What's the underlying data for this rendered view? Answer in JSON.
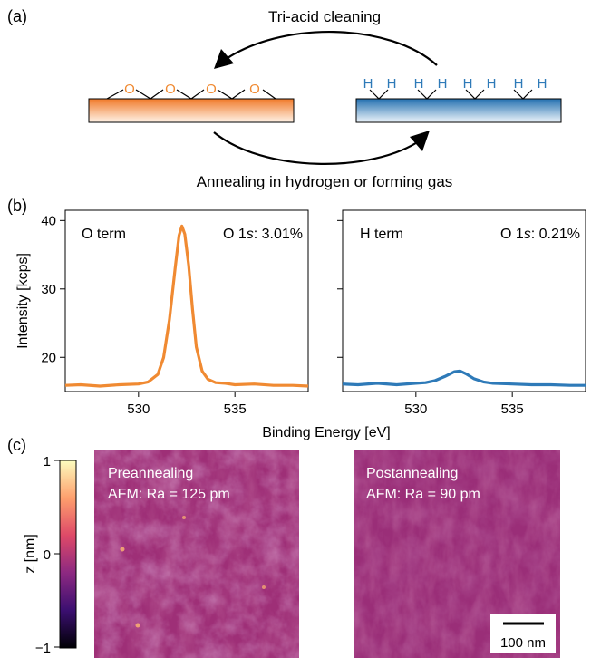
{
  "panel_a": {
    "label": "(a)",
    "top_arrow_label": "Tri-acid cleaning",
    "bottom_arrow_label": "Annealing in hydrogen or forming gas",
    "o_atoms": [
      "O",
      "O",
      "O",
      "O"
    ],
    "h_atoms": [
      "H",
      "H",
      "H",
      "H",
      "H",
      "H",
      "H",
      "H"
    ],
    "colors": {
      "oxygen": "#f08a32",
      "hydrogen": "#2e7ab8"
    }
  },
  "panel_b": {
    "label": "(b)"
  },
  "panel_c": {
    "label": "(c)",
    "colorbar_label": "z [nm]",
    "colorbar_ticks": [
      "1",
      "0",
      "−1"
    ],
    "left_title": "Preannealing",
    "left_subtitle": "AFM: Ra = 125 pm",
    "right_title": "Postannealing",
    "right_subtitle": "AFM: Ra = 90 pm",
    "scalebar_label": "100 nm"
  },
  "chart_data": [
    {
      "type": "line",
      "annotation_left": "O term",
      "annotation_right_prefix": "O 1",
      "annotation_right_italic": "s",
      "annotation_right_suffix": ": 3.01%",
      "xlabel": "Binding Energy [eV]",
      "ylabel": "Intensity [kcps]",
      "xlim": [
        526.2,
        538.8
      ],
      "ylim": [
        15,
        41.5
      ],
      "xticks": [
        "530",
        "535"
      ],
      "yticks": [
        "20",
        "30",
        "40"
      ],
      "color": "#f08a32",
      "x": [
        526.2,
        527,
        528,
        529,
        530,
        530.5,
        531,
        531.3,
        531.6,
        531.9,
        532.1,
        532.25,
        532.4,
        532.6,
        532.8,
        533.0,
        533.3,
        533.6,
        534,
        534.5,
        535,
        536,
        537,
        538,
        538.8
      ],
      "y": [
        15.9,
        16.0,
        15.8,
        16.0,
        16.1,
        16.4,
        17.5,
        20.0,
        25.5,
        33.0,
        37.8,
        39.2,
        38.0,
        33.5,
        27.0,
        21.5,
        18.0,
        16.8,
        16.3,
        16.2,
        16.0,
        16.1,
        15.9,
        15.9,
        15.8
      ]
    },
    {
      "type": "line",
      "annotation_left": "H term",
      "annotation_right_prefix": "O 1",
      "annotation_right_italic": "s",
      "annotation_right_suffix": ": 0.21%",
      "xlim": [
        526.2,
        538.8
      ],
      "ylim": [
        15,
        41.5
      ],
      "xticks": [
        "530",
        "535"
      ],
      "color": "#2e7ab8",
      "x": [
        526.2,
        527,
        528,
        529,
        530,
        530.5,
        531,
        531.5,
        532,
        532.3,
        532.6,
        533,
        533.5,
        534,
        535,
        536,
        537,
        538,
        538.8
      ],
      "y": [
        16.1,
        16.0,
        16.2,
        16.0,
        16.2,
        16.3,
        16.6,
        17.2,
        17.9,
        18.0,
        17.6,
        16.9,
        16.4,
        16.2,
        16.1,
        16.0,
        16.0,
        15.9,
        15.9
      ]
    }
  ]
}
